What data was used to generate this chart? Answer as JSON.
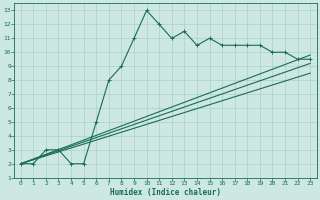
{
  "xlabel": "Humidex (Indice chaleur)",
  "bg_color": "#cce8e0",
  "grid_color": "#aad0c8",
  "line_color": "#1a6b5a",
  "xlim": [
    -0.5,
    23.5
  ],
  "ylim": [
    1,
    13.5
  ],
  "xticks": [
    0,
    1,
    2,
    3,
    4,
    5,
    6,
    7,
    8,
    9,
    10,
    11,
    12,
    13,
    14,
    15,
    16,
    17,
    18,
    19,
    20,
    21,
    22,
    23
  ],
  "yticks": [
    1,
    2,
    3,
    4,
    5,
    6,
    7,
    8,
    9,
    10,
    11,
    12,
    13
  ],
  "line1_x": [
    0,
    1,
    2,
    3,
    4,
    5,
    6,
    7,
    8,
    9,
    10,
    11,
    12,
    13,
    14,
    15,
    16,
    17,
    18,
    19,
    20,
    21,
    22,
    23
  ],
  "line1_y": [
    2,
    2,
    3,
    3,
    2,
    2,
    5,
    8,
    9,
    11,
    13,
    12,
    11,
    11.5,
    10.5,
    11,
    10.5,
    10.5,
    10.5,
    10.5,
    10,
    10,
    9.5,
    9.5
  ],
  "line2_x": [
    0,
    23
  ],
  "line2_y": [
    2,
    9.8
  ],
  "line3_x": [
    0,
    23
  ],
  "line3_y": [
    2,
    8.5
  ],
  "line4_x": [
    0,
    23
  ],
  "line4_y": [
    2,
    9.2
  ]
}
